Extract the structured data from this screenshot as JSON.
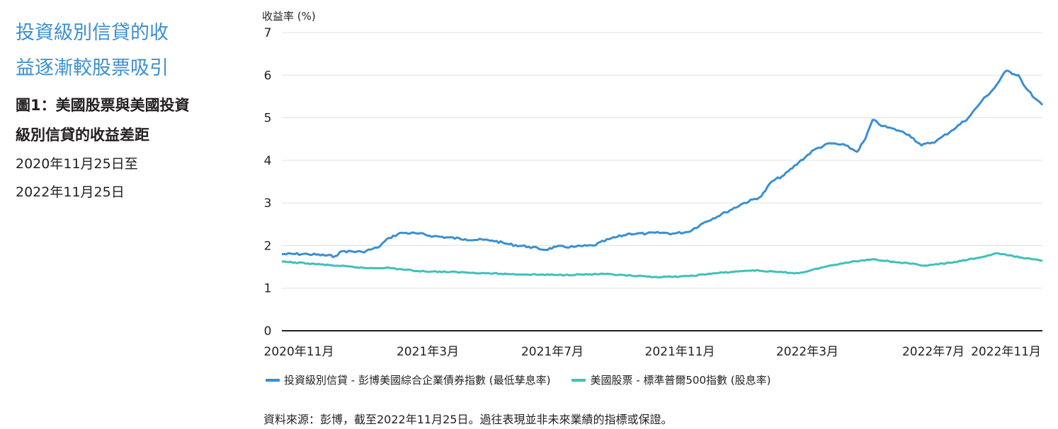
{
  "headline": [
    "投資級別信貸的收",
    "益逐漸較股票吸引"
  ],
  "figure_title": [
    "圖1：美國股票與美國投資",
    "級別信貸的收益差距"
  ],
  "date_range": [
    "2020年11月25日至",
    "2022年11月25日"
  ],
  "source_note": "資料來源：彭博，截至2022年11月25日。過往表現並非未來業績的指標或保證。",
  "colors": {
    "credit": "#3a8fd0",
    "equity": "#3fc1b8",
    "grid": "#e0e0e0",
    "axis": "#231f20",
    "headline": "#3a8fd0"
  },
  "chart_data": {
    "type": "line",
    "title": "",
    "ylabel": "收益率 (%)",
    "xlabel": "",
    "ylim": [
      0,
      7
    ],
    "yticks": [
      "0",
      "1",
      "2",
      "3",
      "4",
      "5",
      "6",
      "7"
    ],
    "xlim": [
      "2020-11-25",
      "2022-11-25"
    ],
    "xticks": [
      {
        "label": "2020年11月",
        "date": "2020-11-25"
      },
      {
        "label": "2021年3月",
        "date": "2021-03-25"
      },
      {
        "label": "2021年7月",
        "date": "2021-07-25"
      },
      {
        "label": "2021年11月",
        "date": "2021-11-25"
      },
      {
        "label": "2022年3月",
        "date": "2022-03-25"
      },
      {
        "label": "2022年7月",
        "date": "2022-07-25"
      },
      {
        "label": "2022年11月",
        "date": "2022-11-25"
      }
    ],
    "grid": true,
    "legend_position": "bottom",
    "series": [
      {
        "name": "投資級別信貸 - 彭博美國綜合企業債券指數 (最低孳息率)",
        "color_key": "credit",
        "points": [
          [
            "2020-11-25",
            1.8
          ],
          [
            "2020-12-20",
            1.8
          ],
          [
            "2021-01-15",
            1.75
          ],
          [
            "2021-01-22",
            1.87
          ],
          [
            "2021-02-10",
            1.85
          ],
          [
            "2021-02-25",
            1.95
          ],
          [
            "2021-03-08",
            2.18
          ],
          [
            "2021-03-20",
            2.3
          ],
          [
            "2021-04-05",
            2.28
          ],
          [
            "2021-04-20",
            2.22
          ],
          [
            "2021-05-20",
            2.15
          ],
          [
            "2021-06-15",
            2.12
          ],
          [
            "2021-07-01",
            2.03
          ],
          [
            "2021-07-20",
            1.97
          ],
          [
            "2021-08-05",
            1.9
          ],
          [
            "2021-08-15",
            1.97
          ],
          [
            "2021-09-01",
            1.97
          ],
          [
            "2021-09-20",
            2.0
          ],
          [
            "2021-10-05",
            2.15
          ],
          [
            "2021-10-25",
            2.28
          ],
          [
            "2021-11-10",
            2.28
          ],
          [
            "2021-11-25",
            2.3
          ],
          [
            "2021-12-05",
            2.28
          ],
          [
            "2021-12-20",
            2.32
          ],
          [
            "2022-01-05",
            2.55
          ],
          [
            "2022-01-25",
            2.78
          ],
          [
            "2022-02-10",
            2.98
          ],
          [
            "2022-02-28",
            3.15
          ],
          [
            "2022-03-10",
            3.5
          ],
          [
            "2022-03-22",
            3.65
          ],
          [
            "2022-04-05",
            3.95
          ],
          [
            "2022-04-20",
            4.25
          ],
          [
            "2022-05-05",
            4.4
          ],
          [
            "2022-05-20",
            4.35
          ],
          [
            "2022-05-31",
            4.2
          ],
          [
            "2022-06-08",
            4.5
          ],
          [
            "2022-06-15",
            4.95
          ],
          [
            "2022-06-25",
            4.8
          ],
          [
            "2022-07-10",
            4.7
          ],
          [
            "2022-07-20",
            4.6
          ],
          [
            "2022-08-01",
            4.35
          ],
          [
            "2022-08-15",
            4.45
          ],
          [
            "2022-08-30",
            4.7
          ],
          [
            "2022-09-15",
            5.0
          ],
          [
            "2022-09-28",
            5.4
          ],
          [
            "2022-10-10",
            5.7
          ],
          [
            "2022-10-21",
            6.1
          ],
          [
            "2022-11-02",
            6.0
          ],
          [
            "2022-11-09",
            5.7
          ],
          [
            "2022-11-18",
            5.45
          ],
          [
            "2022-11-25",
            5.3
          ]
        ]
      },
      {
        "name": "美國股票 - 標準普爾500指數 (股息率)",
        "color_key": "equity",
        "points": [
          [
            "2020-11-25",
            1.62
          ],
          [
            "2020-12-20",
            1.58
          ],
          [
            "2021-01-20",
            1.52
          ],
          [
            "2021-02-15",
            1.47
          ],
          [
            "2021-03-05",
            1.48
          ],
          [
            "2021-04-05",
            1.4
          ],
          [
            "2021-05-20",
            1.37
          ],
          [
            "2021-07-01",
            1.33
          ],
          [
            "2021-08-15",
            1.31
          ],
          [
            "2021-10-01",
            1.33
          ],
          [
            "2021-11-01",
            1.28
          ],
          [
            "2021-11-25",
            1.26
          ],
          [
            "2021-12-20",
            1.28
          ],
          [
            "2022-01-15",
            1.35
          ],
          [
            "2022-02-20",
            1.42
          ],
          [
            "2022-03-15",
            1.38
          ],
          [
            "2022-04-05",
            1.35
          ],
          [
            "2022-04-30",
            1.5
          ],
          [
            "2022-05-20",
            1.6
          ],
          [
            "2022-06-15",
            1.68
          ],
          [
            "2022-07-05",
            1.62
          ],
          [
            "2022-08-05",
            1.53
          ],
          [
            "2022-08-31",
            1.6
          ],
          [
            "2022-09-30",
            1.74
          ],
          [
            "2022-10-12",
            1.82
          ],
          [
            "2022-10-28",
            1.75
          ],
          [
            "2022-11-15",
            1.68
          ],
          [
            "2022-11-25",
            1.65
          ]
        ]
      }
    ]
  }
}
